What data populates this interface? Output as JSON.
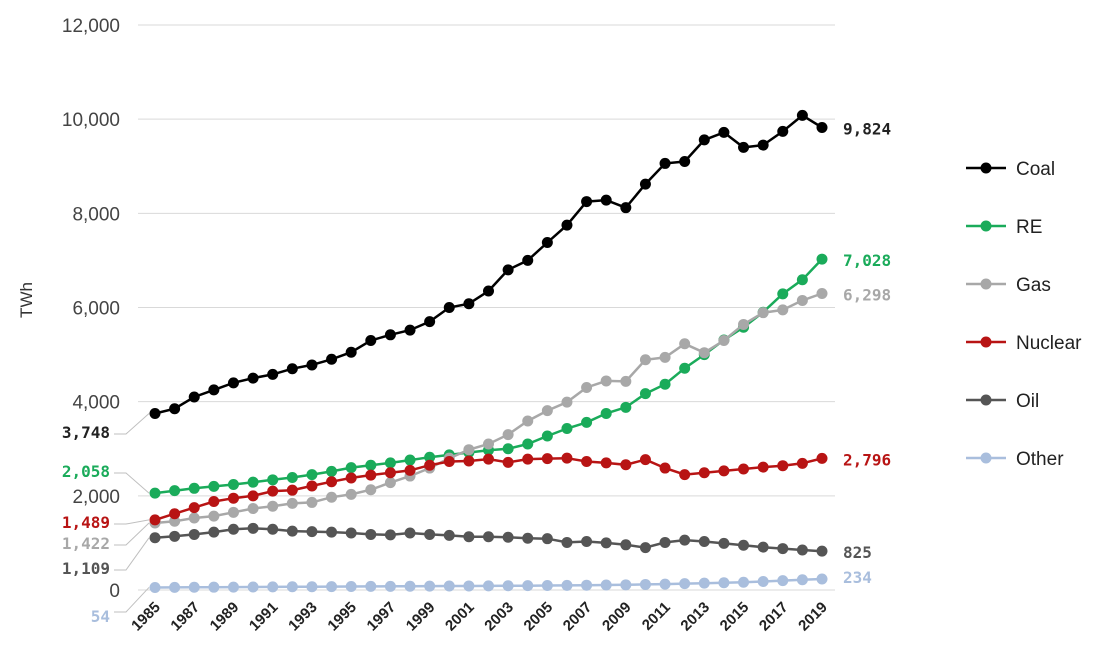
{
  "chart_data": {
    "type": "line",
    "title": "",
    "xlabel": "",
    "ylabel": "TWh",
    "ylim": [
      0,
      12000
    ],
    "yticks": [
      "0",
      "2,000",
      "4,000",
      "6,000",
      "8,000",
      "10,000",
      "12,000"
    ],
    "x": [
      1985,
      1986,
      1987,
      1988,
      1989,
      1990,
      1991,
      1992,
      1993,
      1994,
      1995,
      1996,
      1997,
      1998,
      1999,
      2000,
      2001,
      2002,
      2003,
      2004,
      2005,
      2006,
      2007,
      2008,
      2009,
      2010,
      2011,
      2012,
      2013,
      2014,
      2015,
      2016,
      2017,
      2018,
      2019
    ],
    "xtick_labels": [
      "1985",
      "1987",
      "1989",
      "1991",
      "1993",
      "1995",
      "1997",
      "1999",
      "2001",
      "2003",
      "2005",
      "2007",
      "2009",
      "2011",
      "2013",
      "2015",
      "2017",
      "2019"
    ],
    "grid": true,
    "legend_position": "right",
    "series": [
      {
        "name": "Coal",
        "color": "#000000",
        "values": [
          3748,
          3850,
          4100,
          4250,
          4400,
          4500,
          4580,
          4700,
          4780,
          4900,
          5050,
          5300,
          5420,
          5520,
          5700,
          6000,
          6080,
          6350,
          6800,
          7000,
          7380,
          7750,
          8250,
          8280,
          8120,
          8620,
          9060,
          9100,
          9560,
          9720,
          9400,
          9450,
          9740,
          10080,
          9824
        ],
        "start_label": "3,748",
        "end_label": "9,824"
      },
      {
        "name": "RE",
        "color": "#1aab5a",
        "values": [
          2058,
          2110,
          2160,
          2200,
          2240,
          2290,
          2340,
          2390,
          2450,
          2520,
          2600,
          2650,
          2700,
          2760,
          2820,
          2870,
          2920,
          2970,
          3000,
          3100,
          3270,
          3430,
          3560,
          3750,
          3880,
          4170,
          4370,
          4710,
          5000,
          5310,
          5580,
          5900,
          6290,
          6590,
          7028
        ],
        "start_label": "2,058",
        "end_label": "7,028"
      },
      {
        "name": "Gas",
        "color": "#a8a8a8",
        "values": [
          1422,
          1460,
          1530,
          1570,
          1650,
          1730,
          1780,
          1840,
          1860,
          1970,
          2030,
          2130,
          2280,
          2420,
          2590,
          2800,
          2980,
          3100,
          3300,
          3590,
          3810,
          3990,
          4300,
          4440,
          4430,
          4890,
          4940,
          5230,
          5040,
          5300,
          5640,
          5890,
          5950,
          6150,
          6298
        ],
        "start_label": "1,422",
        "end_label": "6,298"
      },
      {
        "name": "Nuclear",
        "color": "#b81414",
        "values": [
          1489,
          1620,
          1750,
          1880,
          1950,
          2000,
          2100,
          2120,
          2210,
          2300,
          2380,
          2440,
          2490,
          2540,
          2650,
          2730,
          2740,
          2780,
          2710,
          2780,
          2790,
          2800,
          2730,
          2700,
          2660,
          2770,
          2590,
          2450,
          2490,
          2530,
          2570,
          2610,
          2640,
          2690,
          2796
        ],
        "start_label": "1,489",
        "end_label": "2,796"
      },
      {
        "name": "Oil",
        "color": "#555555",
        "values": [
          1109,
          1140,
          1180,
          1230,
          1290,
          1310,
          1290,
          1250,
          1240,
          1230,
          1210,
          1180,
          1170,
          1210,
          1180,
          1160,
          1130,
          1130,
          1120,
          1100,
          1090,
          1010,
          1030,
          1000,
          960,
          900,
          1010,
          1060,
          1030,
          990,
          950,
          910,
          880,
          850,
          825
        ],
        "start_label": "1,109",
        "end_label": "825"
      },
      {
        "name": "Other",
        "color": "#a9bedd",
        "values": [
          54,
          56,
          58,
          60,
          62,
          64,
          66,
          68,
          70,
          72,
          74,
          76,
          78,
          80,
          82,
          84,
          86,
          88,
          90,
          92,
          95,
          98,
          102,
          106,
          110,
          118,
          125,
          135,
          145,
          155,
          165,
          180,
          200,
          218,
          234
        ],
        "start_label": "54",
        "end_label": "234"
      }
    ]
  }
}
